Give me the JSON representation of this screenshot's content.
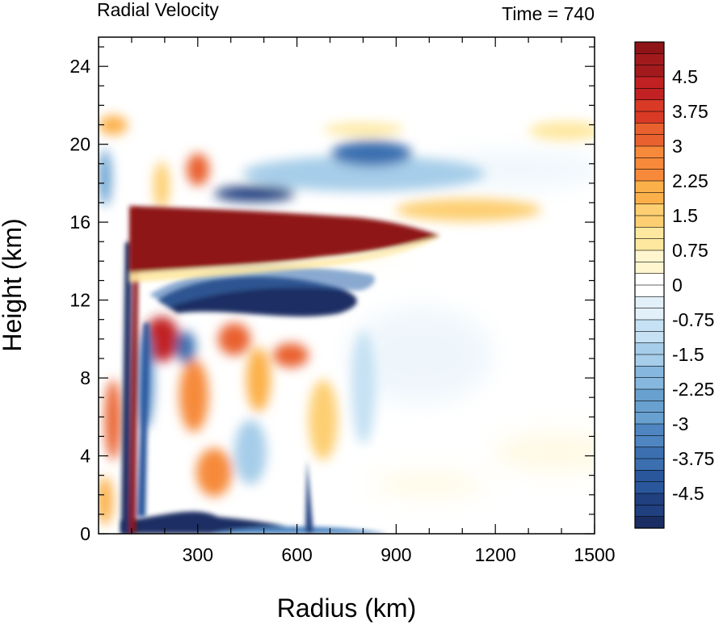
{
  "chart_data": {
    "type": "heatmap",
    "title": "Radial Velocity",
    "subtitle": "Time = 740",
    "xlabel": "Radius (km)",
    "ylabel": "Height (km)",
    "xlim": [
      0,
      1500
    ],
    "ylim": [
      0,
      25.5
    ],
    "xticks": [
      300,
      600,
      900,
      1200,
      1500
    ],
    "yticks": [
      0,
      4,
      8,
      12,
      16,
      20,
      24
    ],
    "grid": false,
    "colorbar": {
      "min": -5.25,
      "max": 5.25,
      "step": 0.25,
      "labels": [
        "4.5",
        "3.75",
        "3",
        "2.25",
        "1.5",
        "0.75",
        "0",
        "-0.75",
        "-1.5",
        "-2.25",
        "-3",
        "-3.75",
        "-4.5"
      ],
      "label_values": [
        4.5,
        3.75,
        3,
        2.25,
        1.5,
        0.75,
        0,
        -0.75,
        -1.5,
        -2.25,
        -3,
        -3.75,
        -4.5
      ],
      "palette": [
        "#1a2e63",
        "#20407f",
        "#2a579c",
        "#3b6fb0",
        "#4f86c1",
        "#68a0d0",
        "#86b7de",
        "#a6cde9",
        "#c5e1f3",
        "#e2f0f9",
        "#ffffff",
        "#fff6d0",
        "#fee8a0",
        "#fdcf72",
        "#fcb04a",
        "#f68a3a",
        "#e9612e",
        "#d93a26",
        "#c12122",
        "#a31a1d",
        "#8e1417"
      ]
    },
    "features": [
      {
        "name": "upper-level outflow jet",
        "r": [
          80,
          1040
        ],
        "z": [
          13.8,
          16.6
        ],
        "value": 5.25
      },
      {
        "name": "inflow layer below outflow",
        "r": [
          170,
          600
        ],
        "z": [
          10.8,
          13.2
        ],
        "value": -5.0
      },
      {
        "name": "boundary-layer inflow",
        "r": [
          80,
          380
        ],
        "z": [
          0,
          1.2
        ],
        "value": -5.0
      },
      {
        "name": "upper inflow band",
        "r": [
          300,
          900
        ],
        "z": [
          17.5,
          20.5
        ],
        "value": -3.5
      },
      {
        "name": "mid-level outflow bands",
        "r": [
          130,
          450
        ],
        "z": [
          2,
          10
        ],
        "value": 2.5
      }
    ]
  }
}
